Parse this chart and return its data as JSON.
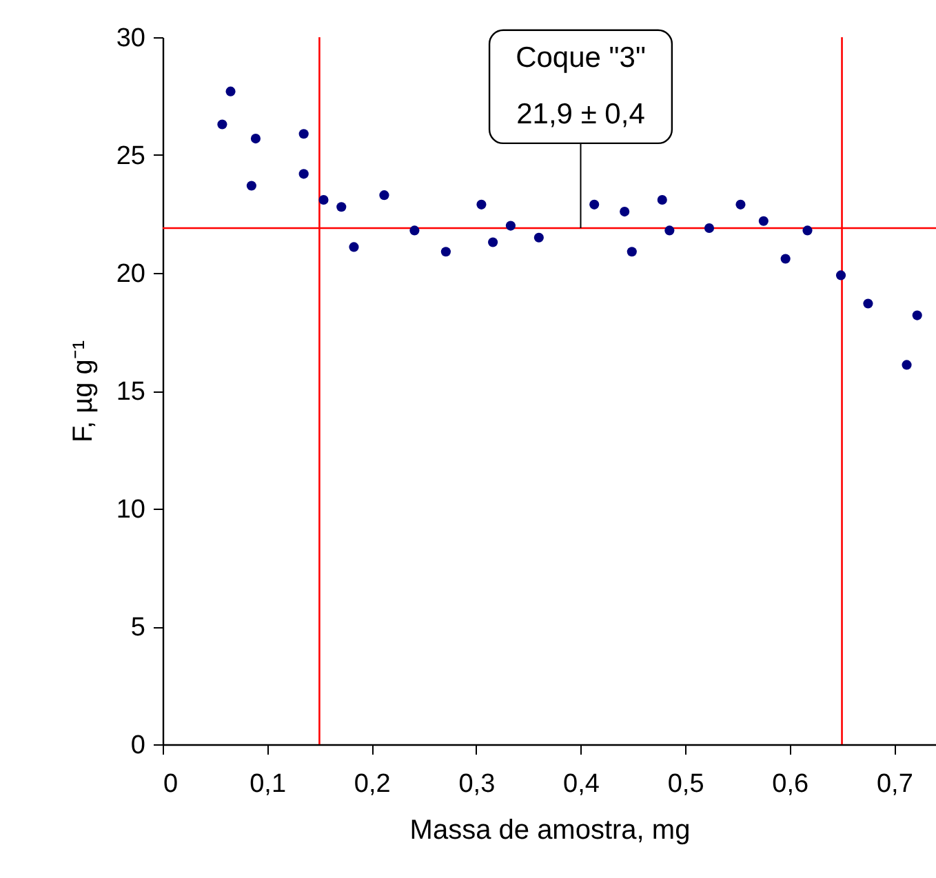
{
  "chart_data": {
    "type": "scatter",
    "xlabel": "Massa de amostra, mg",
    "ylabel": "F, µg g⁻¹",
    "x": [
      0.057,
      0.065,
      0.085,
      0.089,
      0.135,
      0.135,
      0.154,
      0.171,
      0.183,
      0.212,
      0.241,
      0.271,
      0.305,
      0.316,
      0.333,
      0.36,
      0.413,
      0.442,
      0.449,
      0.478,
      0.485,
      0.523,
      0.553,
      0.575,
      0.596,
      0.617,
      0.649,
      0.675,
      0.712,
      0.722
    ],
    "series": [
      {
        "color": "#000080",
        "values": [
          26.3,
          27.7,
          23.7,
          25.7,
          24.2,
          25.9,
          23.1,
          22.8,
          21.1,
          23.3,
          21.8,
          20.9,
          22.9,
          21.3,
          22.0,
          21.5,
          22.9,
          22.6,
          20.9,
          23.1,
          21.8,
          21.9,
          22.9,
          22.2,
          20.6,
          21.8,
          19.9,
          18.7,
          16.1,
          18.2
        ]
      }
    ],
    "xlim": [
      0,
      0.74
    ],
    "xticks": [
      0,
      {
        "value": 0.1,
        "label": "0,1"
      },
      {
        "value": 0.2,
        "label": "0,2"
      },
      {
        "value": 0.3,
        "label": "0,3"
      },
      {
        "value": 0.4,
        "label": "0,4"
      },
      {
        "value": 0.5,
        "label": "0,5"
      },
      {
        "value": 0.6,
        "label": "0,6"
      },
      {
        "value": 0.7,
        "label": "0,7"
      }
    ],
    "ylim": [
      0,
      30
    ],
    "yticks": [
      0,
      5,
      10,
      15,
      20,
      25,
      30
    ],
    "ref_lines": [
      {
        "axis": "y",
        "value": 21.9,
        "color": "#ff0000"
      },
      {
        "axis": "x",
        "value": 0.15,
        "color": "#ff0000"
      },
      {
        "axis": "x",
        "value": 0.65,
        "color": "#ff0000"
      }
    ],
    "annotations": [
      "Coque \"3\"",
      {
        "text": "21,9 ± 0,4",
        "x": 0.4,
        "y": 21.9
      }
    ],
    "grid": false,
    "marker": "circle"
  }
}
